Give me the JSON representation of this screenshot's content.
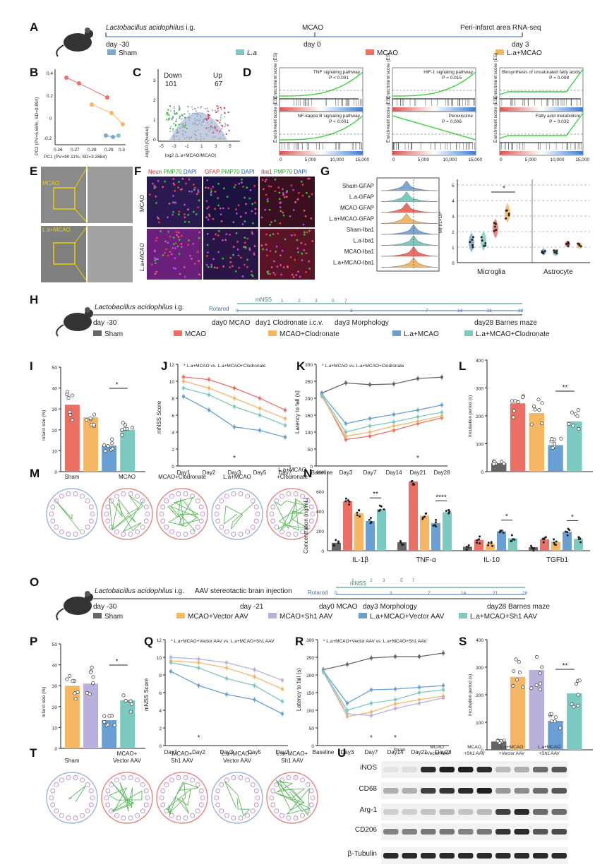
{
  "labels": {
    "A": "A",
    "B": "B",
    "C": "C",
    "D": "D",
    "E": "E",
    "F": "F",
    "G": "G",
    "H": "H",
    "I": "I",
    "J": "J",
    "K": "K",
    "L": "L",
    "M": "M",
    "N": "N",
    "O": "O",
    "P": "P",
    "Q": "Q",
    "R": "R",
    "S": "S",
    "T": "T",
    "U": "U"
  },
  "colors": {
    "sham": "#7fa6cf",
    "la": "#7cc9c0",
    "mcao": "#ec6f66",
    "la_mcao": "#f6b765",
    "gray": "#666666",
    "lav": "#b9b0dc",
    "mblue": "#6a9fd3"
  },
  "panelA": {
    "drug": "Lactobacillus acidophilus",
    "route": " i.g.",
    "mcao": "MCAO",
    "seq": "Peri-infarct area RNA-seq",
    "t0": "day -30",
    "t1": "day 0",
    "t2": "day 3",
    "legend": [
      "Sham",
      "L.a",
      "MCAO",
      "L.a+MCAO"
    ]
  },
  "panelB": {
    "ylabel": "PC2 (PV=6.66%, SD=0.894)",
    "xlabel": "PC1 (PV=90.11%, SD=3.2884)",
    "xticks": [
      "0.26",
      "0.27",
      "0.28",
      "0.29",
      "0.3"
    ],
    "yticks": [
      "0.4",
      "0.2",
      "0",
      "-0.2"
    ]
  },
  "panelC": {
    "down_label": "Down",
    "down_n": "101",
    "up_label": "Up",
    "up_n": "67",
    "ylabel": "-log10 (Qvalue)",
    "xlabel": "log2 (L.a+MCAO/MCAO)",
    "xticks": [
      "-5",
      "-3",
      "-1",
      "1",
      "3",
      "5"
    ],
    "yticks": [
      "0",
      "1",
      "2",
      "3"
    ]
  },
  "panelD": {
    "ylabel": "Enrichment score (ES)",
    "pathways": [
      {
        "name": "TNF signaling pathway",
        "p": "P < 0.001"
      },
      {
        "name": "HIF-1 signaling pathway",
        "p": "P = 0.015"
      },
      {
        "name": "Biosynthesis of unsaturated fatty acids",
        "p": "P = 0.008"
      },
      {
        "name": "NF-kappa B signaling pathway",
        "p": "P < 0.001"
      },
      {
        "name": "Peroxisome",
        "p": "P = 0.006"
      },
      {
        "name": "Fatty acid metabolism",
        "p": "P = 0.032"
      }
    ],
    "xticks": [
      "0",
      "5,000",
      "10,000",
      "15,000"
    ]
  },
  "panelE": {
    "rows": [
      "MCAO",
      "L.a+MCAO"
    ]
  },
  "panelF": {
    "col1": [
      "Neun ",
      "PMP70 ",
      "DAPI"
    ],
    "col2": [
      "GFAP ",
      "PMP70 ",
      "DAPI"
    ],
    "col3": [
      "Iba1 ",
      "PMP70 ",
      "DAPI"
    ],
    "rows": [
      "MCAO",
      "L.a+MCAO"
    ]
  },
  "panelG": {
    "hist_labels": [
      "Sham-GFAP",
      "L.a-GFAP",
      "MCAO-GFAP",
      "L.a+MCAO-GFAP",
      "Sham-Iba1",
      "L.a-Iba1",
      "MCAO-Iba1",
      "L.a+MCAO-Iba1"
    ],
    "ylabel": "MFI/1×10⁴",
    "yticks": [
      "0",
      "1",
      "2",
      "3",
      "4",
      "5"
    ],
    "groups": [
      "Microglia",
      "Astrocyte"
    ],
    "sig": "*"
  },
  "panelH": {
    "drug": "Lactobacillus acidophilus",
    "route": " i.g.",
    "rotarod": "Rotarod",
    "mnss": "mNSS",
    "mnss_days": [
      "1",
      "2",
      "3",
      "5",
      "7"
    ],
    "rot_days": [
      "0",
      "3",
      "7",
      "14",
      "21",
      "28"
    ],
    "t0": "day -30",
    "t1": "day0 MCAO",
    "t2": "day1 Clodronate i.c.v.",
    "t3": "day3 Morphology",
    "t4": "day28 Barnes maze",
    "legend": [
      "Sham",
      "MCAO",
      "MCAO+Clodronate",
      "L.a+MCAO",
      "L.a+MCAO+Clodronate"
    ]
  },
  "panelI": {
    "ylabel": "Infarct size (%)",
    "yticks": [
      "0",
      "10",
      "20",
      "30",
      "40",
      "50"
    ],
    "sig": "*"
  },
  "panelJ": {
    "ylabel": "mNSS Score",
    "note": "L.a+MCAO vs. L.a+MCAO+Clodronate",
    "xticks": [
      "Day1",
      "Day2",
      "Day3",
      "Day5",
      "Day7"
    ],
    "yticks": [
      "0",
      "2",
      "4",
      "6",
      "8",
      "10",
      "12"
    ]
  },
  "panelK": {
    "ylabel": "Latency to fall (s)",
    "note": "L.a+MCAO vs. L.a+MCAO+Clodronate",
    "xticks": [
      "Baseline",
      "Day3",
      "Day7",
      "Day14",
      "Day21",
      "Day28"
    ],
    "yticks": [
      "0",
      "50",
      "100",
      "150",
      "200",
      "250",
      "300"
    ]
  },
  "panelL": {
    "ylabel": "Incubation period (s)",
    "yticks": [
      "0",
      "100",
      "200",
      "300",
      "400"
    ],
    "sig": "**"
  },
  "panelM": {
    "titles": [
      "Sham",
      "MCAO",
      "MCAO+Clodronate",
      "L.a+MCAO",
      "L.a+MCAO\n+Clodronate"
    ]
  },
  "panelN": {
    "ylabel": "Concentration (ng/mL)",
    "yticks": [
      "0",
      "200",
      "400",
      "600",
      "800"
    ],
    "groups": [
      "IL-1β",
      "TNF-α",
      "IL-10",
      "TGFb1"
    ],
    "sigs": [
      "**",
      "****",
      "*",
      "*"
    ]
  },
  "panelO": {
    "drug": "Lactobacillus acidophilus",
    "route": " i.g.",
    "aav": "AAV stereotactic brain injection",
    "rotarod": "Rotarod",
    "mnss": "mNSS",
    "mnss_days": [
      "1",
      "2",
      "3",
      "5",
      "7"
    ],
    "rot_days": [
      "0",
      "3",
      "7",
      "14",
      "21",
      "28"
    ],
    "t0": "day -30",
    "t1": "day -21",
    "t2": "day0 MCAO",
    "t3": "day3 Morphology",
    "t4": "day28 Barnes maze",
    "legend": [
      "Sham",
      "MCAO+Vector AAV",
      "MCAO+Sh1 AAV",
      "L.a+MCAO+Vector AAV",
      "L.a+MCAO+Sh1 AAV"
    ]
  },
  "panelP": {
    "ylabel": "Infarct size (%)",
    "yticks": [
      "0",
      "10",
      "20",
      "30",
      "40",
      "50"
    ],
    "sig": "*"
  },
  "panelQ": {
    "ylabel": "mNSS Score",
    "note": "L.a+MCAO+Vector AAV vs. L.a+MCAO+Sh1 AAV",
    "xticks": [
      "Day1",
      "Day2",
      "Day3",
      "Day5",
      "Day7"
    ],
    "yticks": [
      "0",
      "2",
      "4",
      "6",
      "8",
      "10",
      "12"
    ]
  },
  "panelR": {
    "ylabel": "Latency to fall (s)",
    "note": "L.a+MCAO+Vector AAV vs. L.a+MCAO+Sh1 AAV",
    "xticks": [
      "Baseline",
      "Day3",
      "Day7",
      "Day14",
      "Day21",
      "Day28"
    ],
    "yticks": [
      "0",
      "50",
      "100",
      "150",
      "200",
      "250",
      "300"
    ]
  },
  "panelS": {
    "ylabel": "Incubation period (s)",
    "yticks": [
      "0",
      "100",
      "200",
      "300",
      "400"
    ],
    "sig": "**"
  },
  "panelT": {
    "titles": [
      "Sham",
      "MCAO+\nVector AAV",
      "MCAO+\nSh1 AAV",
      "L.a+MCAO+\nVector AAV",
      "L.a+MCAO+\nSh1 AAV"
    ]
  },
  "panelU": {
    "cols": [
      "Sham",
      "MCAO\n+Vector AAV",
      "MCAO\n+Sh1 AAV",
      "L.a+MCAO\n+Vector AAV",
      "L.a+MCAO\n+Sh1 AAV"
    ],
    "rows": [
      "iNOS",
      "CD68",
      "Arg-1",
      "CD206",
      "β-Tubulin"
    ]
  },
  "chart_data": [
    {
      "id": "I",
      "type": "bar",
      "ylabel": "Infarct size (%)",
      "ylim": [
        0,
        50
      ],
      "categories": [
        "MCAO",
        "MCAO+Clodronate",
        "L.a+MCAO",
        "L.a+MCAO+Clodronate"
      ],
      "values": [
        32,
        26,
        12.5,
        20
      ]
    },
    {
      "id": "J",
      "type": "line",
      "ylabel": "mNSS Score",
      "ylim": [
        0,
        12
      ],
      "x": [
        "Day1",
        "Day2",
        "Day3",
        "Day5",
        "Day7"
      ],
      "series": [
        {
          "name": "MCAO",
          "values": [
            10.5,
            10.2,
            9.2,
            8,
            6.6
          ]
        },
        {
          "name": "MCAO+Clodronate",
          "values": [
            10,
            9.2,
            8,
            6.8,
            5.6
          ]
        },
        {
          "name": "L.a+MCAO",
          "values": [
            8.2,
            6.6,
            4.6,
            4.2,
            3.4
          ]
        },
        {
          "name": "L.a+MCAO+Clodronate",
          "values": [
            9.2,
            8.4,
            7,
            6,
            4.8
          ]
        }
      ]
    },
    {
      "id": "K",
      "type": "line",
      "ylabel": "Latency to fall (s)",
      "ylim": [
        0,
        300
      ],
      "x": [
        "Baseline",
        "Day3",
        "Day7",
        "Day14",
        "Day21",
        "Day28"
      ],
      "series": [
        {
          "name": "Sham",
          "values": [
            215,
            245,
            240,
            242,
            258,
            262
          ]
        },
        {
          "name": "MCAO",
          "values": [
            210,
            78,
            88,
            105,
            125,
            142
          ]
        },
        {
          "name": "MCAO+Clodronate",
          "values": [
            205,
            88,
            100,
            118,
            132,
            148
          ]
        },
        {
          "name": "L.a+MCAO",
          "values": [
            212,
            125,
            140,
            152,
            165,
            180
          ]
        },
        {
          "name": "L.a+MCAO+Clodronate",
          "values": [
            208,
            100,
            118,
            130,
            145,
            158
          ]
        }
      ]
    },
    {
      "id": "L",
      "type": "bar",
      "ylabel": "Incubation period (s)",
      "ylim": [
        0,
        400
      ],
      "categories": [
        "Sham",
        "MCAO",
        "MCAO+Clodronate",
        "L.a+MCAO",
        "L.a+MCAO+Clodronate"
      ],
      "values": [
        30,
        245,
        210,
        95,
        180
      ]
    },
    {
      "id": "N",
      "type": "bar",
      "ylabel": "Concentration (ng/mL)",
      "ylim": [
        0,
        800
      ],
      "categories": [
        "IL-1β",
        "TNF-α",
        "IL-10",
        "TGFb1"
      ],
      "series": [
        {
          "name": "Sham",
          "values": [
            80,
            85,
            40,
            35
          ]
        },
        {
          "name": "MCAO",
          "values": [
            500,
            700,
            110,
            115
          ]
        },
        {
          "name": "MCAO+Clodronate",
          "values": [
            380,
            355,
            70,
            90
          ]
        },
        {
          "name": "L.a+MCAO",
          "values": [
            300,
            280,
            195,
            190
          ]
        },
        {
          "name": "L.a+MCAO+Clodronate",
          "values": [
            420,
            390,
            125,
            120
          ]
        }
      ]
    },
    {
      "id": "P",
      "type": "bar",
      "ylabel": "Infarct size (%)",
      "ylim": [
        0,
        50
      ],
      "categories": [
        "MCAO+Vector AAV",
        "MCAO+Sh1 AAV",
        "L.a+MCAO+Vector AAV",
        "L.a+MCAO+Sh1 AAV"
      ],
      "values": [
        30,
        31,
        13.5,
        23
      ]
    },
    {
      "id": "Q",
      "type": "line",
      "ylabel": "mNSS Score",
      "ylim": [
        0,
        12
      ],
      "x": [
        "Day1",
        "Day2",
        "Day3",
        "Day5",
        "Day7"
      ],
      "series": [
        {
          "name": "MCAO+Vector AAV",
          "values": [
            9.6,
            9.4,
            8.8,
            7.8,
            6.4
          ]
        },
        {
          "name": "MCAO+Sh1 AAV",
          "values": [
            10,
            9.8,
            9.4,
            8.6,
            7.4
          ]
        },
        {
          "name": "L.a+MCAO+Vector AAV",
          "values": [
            8.4,
            6.8,
            5.8,
            5.2,
            3.6
          ]
        },
        {
          "name": "L.a+MCAO+Sh1 AAV",
          "values": [
            9.4,
            8.8,
            7.6,
            6.8,
            5
          ]
        }
      ]
    },
    {
      "id": "R",
      "type": "line",
      "ylabel": "Latency to fall (s)",
      "ylim": [
        0,
        300
      ],
      "x": [
        "Baseline",
        "Day3",
        "Day7",
        "Day14",
        "Day21",
        "Day28"
      ],
      "series": [
        {
          "name": "Sham",
          "values": [
            215,
            230,
            248,
            252,
            252,
            262
          ]
        },
        {
          "name": "MCAO+Vector AAV",
          "values": [
            210,
            82,
            95,
            118,
            130,
            140
          ]
        },
        {
          "name": "MCAO+Sh1 AAV",
          "values": [
            208,
            90,
            85,
            105,
            120,
            135
          ]
        },
        {
          "name": "L.a+MCAO+Vector AAV",
          "values": [
            212,
            120,
            158,
            160,
            165,
            170
          ]
        },
        {
          "name": "L.a+MCAO+Sh1 AAV",
          "values": [
            210,
            100,
            120,
            130,
            150,
            158
          ]
        }
      ]
    },
    {
      "id": "S",
      "type": "bar",
      "ylabel": "Incubation period (s)",
      "ylim": [
        0,
        400
      ],
      "categories": [
        "Sham",
        "MCAO+Vector AAV",
        "MCAO+Sh1 AAV",
        "L.a+MCAO+Vector AAV",
        "L.a+MCAO+Sh1 AAV"
      ],
      "values": [
        30,
        265,
        290,
        105,
        205
      ]
    },
    {
      "id": "G",
      "type": "box",
      "ylabel": "MFI/1×10⁴",
      "ylim": [
        0,
        5
      ],
      "categories": [
        "Microglia",
        "Astrocyte"
      ],
      "series": [
        {
          "name": "Sham",
          "values": [
            1.3,
            0.7
          ]
        },
        {
          "name": "L.a",
          "values": [
            1.4,
            0.65
          ]
        },
        {
          "name": "MCAO",
          "values": [
            2.2,
            1.2
          ]
        },
        {
          "name": "L.a+MCAO",
          "values": [
            3.2,
            1.1
          ]
        }
      ]
    }
  ]
}
